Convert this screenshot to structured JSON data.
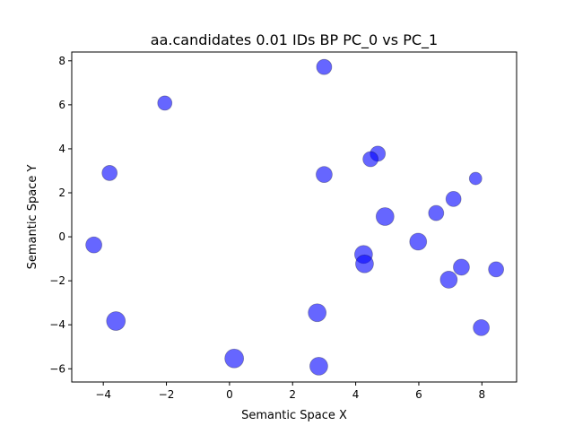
{
  "chart_data": {
    "type": "scatter",
    "title": "aa.candidates 0.01 IDs BP PC_0 vs PC_1",
    "xlabel": "Semantic Space X",
    "ylabel": "Semantic Space Y",
    "xlim": [
      -5.0,
      9.1
    ],
    "ylim": [
      -6.6,
      8.4
    ],
    "xticks": [
      -4,
      -2,
      0,
      2,
      4,
      6,
      8
    ],
    "yticks": [
      -6,
      -4,
      -2,
      0,
      2,
      4,
      6,
      8
    ],
    "xtick_labels": [
      "−4",
      "−2",
      "0",
      "2",
      "4",
      "6",
      "8"
    ],
    "ytick_labels": [
      "−6",
      "−4",
      "−2",
      "0",
      "2",
      "4",
      "6",
      "8"
    ],
    "grid": false,
    "legend": "none",
    "marker_color": "#0000ff",
    "marker_alpha": 0.6,
    "points": [
      {
        "x": 3.0,
        "y": 7.72,
        "size": 8.5
      },
      {
        "x": -2.05,
        "y": 6.08,
        "size": 8.0
      },
      {
        "x": 4.7,
        "y": 3.78,
        "size": 8.5
      },
      {
        "x": 4.47,
        "y": 3.53,
        "size": 8.5
      },
      {
        "x": -3.8,
        "y": 2.9,
        "size": 8.5
      },
      {
        "x": 3.0,
        "y": 2.83,
        "size": 9.0
      },
      {
        "x": 7.8,
        "y": 2.65,
        "size": 7.0
      },
      {
        "x": 7.1,
        "y": 1.72,
        "size": 8.5
      },
      {
        "x": 6.55,
        "y": 1.08,
        "size": 8.5
      },
      {
        "x": 4.93,
        "y": 0.92,
        "size": 10.0
      },
      {
        "x": -4.3,
        "y": -0.37,
        "size": 9.0
      },
      {
        "x": 5.98,
        "y": -0.22,
        "size": 9.5
      },
      {
        "x": 4.25,
        "y": -0.8,
        "size": 10.0
      },
      {
        "x": 4.28,
        "y": -1.23,
        "size": 10.0
      },
      {
        "x": 7.35,
        "y": -1.38,
        "size": 9.0
      },
      {
        "x": 8.45,
        "y": -1.48,
        "size": 8.5
      },
      {
        "x": 6.95,
        "y": -1.95,
        "size": 9.5
      },
      {
        "x": 2.78,
        "y": -3.45,
        "size": 10.0
      },
      {
        "x": -3.6,
        "y": -3.83,
        "size": 10.5
      },
      {
        "x": 7.98,
        "y": -4.13,
        "size": 9.0
      },
      {
        "x": 0.15,
        "y": -5.53,
        "size": 10.5
      },
      {
        "x": 2.83,
        "y": -5.88,
        "size": 10.0
      }
    ]
  }
}
